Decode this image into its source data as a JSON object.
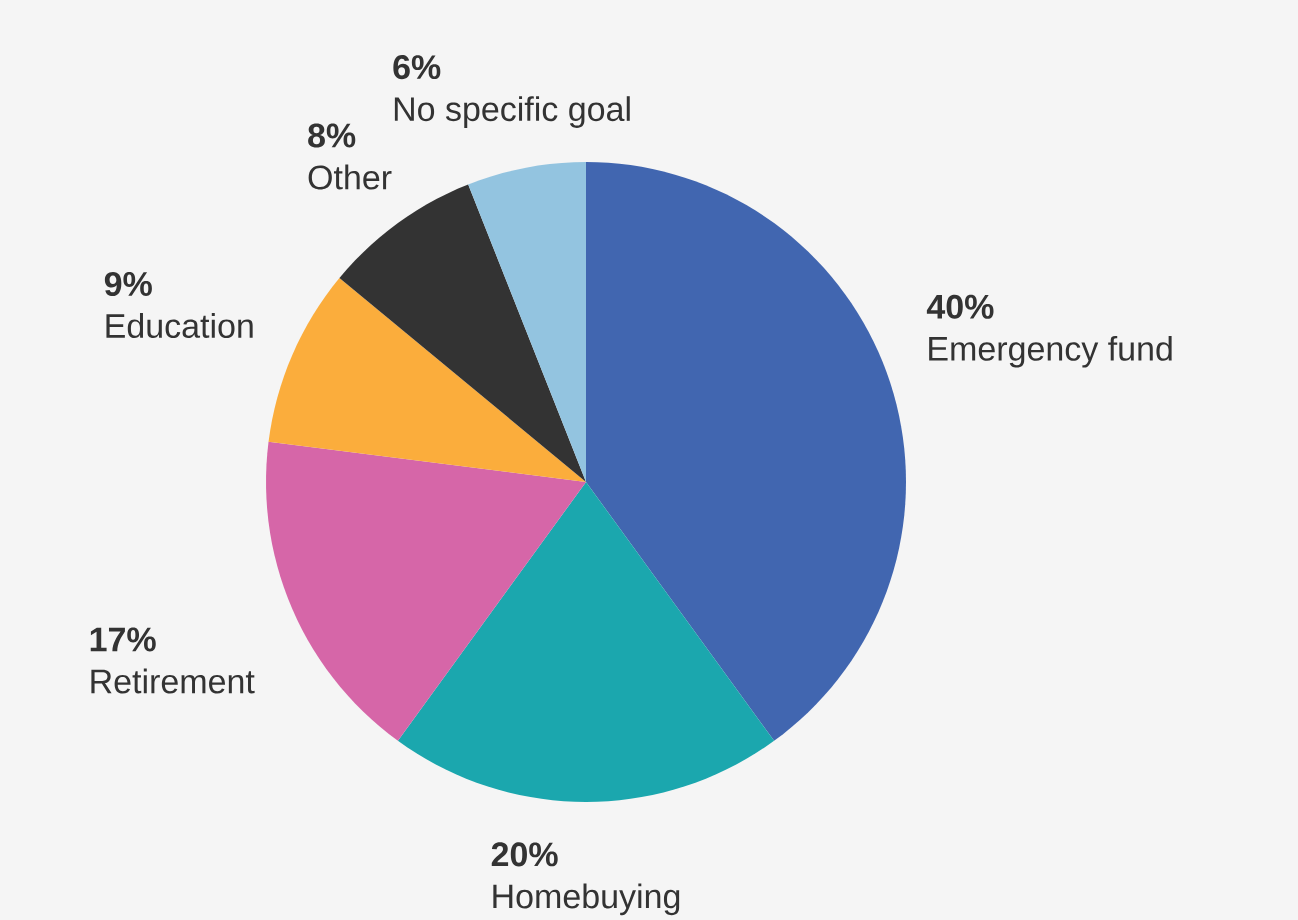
{
  "chart_data": {
    "type": "pie",
    "categories": [
      "Emergency fund",
      "Homebuying",
      "Retirement",
      "Education",
      "Other",
      "No specific goal"
    ],
    "values": [
      40,
      20,
      17,
      9,
      8,
      6
    ],
    "colors": [
      "#4166b0",
      "#1ba7ae",
      "#d666a8",
      "#fbad3c",
      "#333333",
      "#93c4e0"
    ],
    "value_labels": [
      "40%",
      "20%",
      "17%",
      "9%",
      "8%",
      "6%"
    ]
  }
}
